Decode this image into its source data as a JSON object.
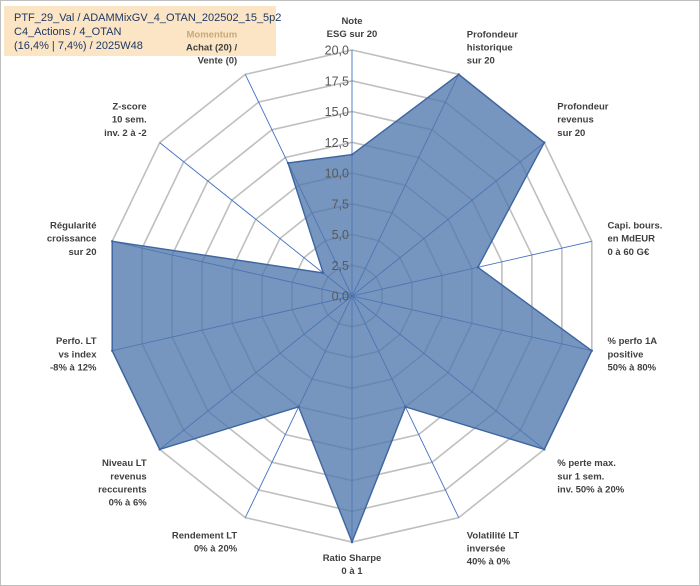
{
  "title": {
    "line1": "PTF_29_Val / ADAMMixGV_4_OTAN_202502_15_5p2",
    "line2": "C4_Actions / 4_OTAN",
    "line3": "(16,4% | 7,4%) / 2025W48"
  },
  "chart_data": {
    "type": "radar",
    "rmin": 0,
    "rmax": 20,
    "ticks": [
      0,
      2.5,
      5,
      7.5,
      10,
      12.5,
      15,
      17.5,
      20
    ],
    "tick_labels": [
      "0,0",
      "2,5",
      "5,0",
      "7,5",
      "10,0",
      "12,5",
      "15,0",
      "17,5",
      "20,0"
    ],
    "axes": [
      {
        "label": [
          "Note",
          "ESG sur 20"
        ],
        "value": 11.5
      },
      {
        "label": [
          "Profondeur",
          "historique",
          "sur 20"
        ],
        "value": 20
      },
      {
        "label": [
          "Profondeur",
          "revenus",
          "sur 20"
        ],
        "value": 20
      },
      {
        "label": [
          "Capi. bours.",
          "en MdEUR",
          "0 à 60 G€"
        ],
        "value": 10.5
      },
      {
        "label": [
          "% perfo 1A",
          "positive",
          "50% à 80%"
        ],
        "value": 20
      },
      {
        "label": [
          "% perte max.",
          "sur 1 sem.",
          "inv. 50% à 20%"
        ],
        "value": 20
      },
      {
        "label": [
          "Volatilité LT",
          "inversée",
          "40% à 0%"
        ],
        "value": 10
      },
      {
        "label": [
          "Ratio Sharpe",
          "0 à 1"
        ],
        "value": 20
      },
      {
        "label": [
          "Rendement LT",
          "0% à 20%"
        ],
        "value": 10
      },
      {
        "label": [
          "Niveau LT",
          "revenus",
          "reccurents",
          "0% à 6%"
        ],
        "value": 20
      },
      {
        "label": [
          "Perfo. LT",
          "vs index",
          "-8% à 12%"
        ],
        "value": 20
      },
      {
        "label": [
          "Régularité",
          "croissance",
          "sur 20"
        ],
        "value": 20
      },
      {
        "label": [
          "Z-score",
          "10 sem.",
          "inv. 2 à -2"
        ],
        "value": 3
      },
      {
        "label": [
          "Momentum",
          "Achat (20) /",
          "Vente (0)"
        ],
        "value": 12
      }
    ],
    "colors": {
      "fill": "#4f77ad",
      "stroke": "#3d65a0",
      "grid": "#bfbfbf",
      "spoke": "#4472c4"
    }
  }
}
